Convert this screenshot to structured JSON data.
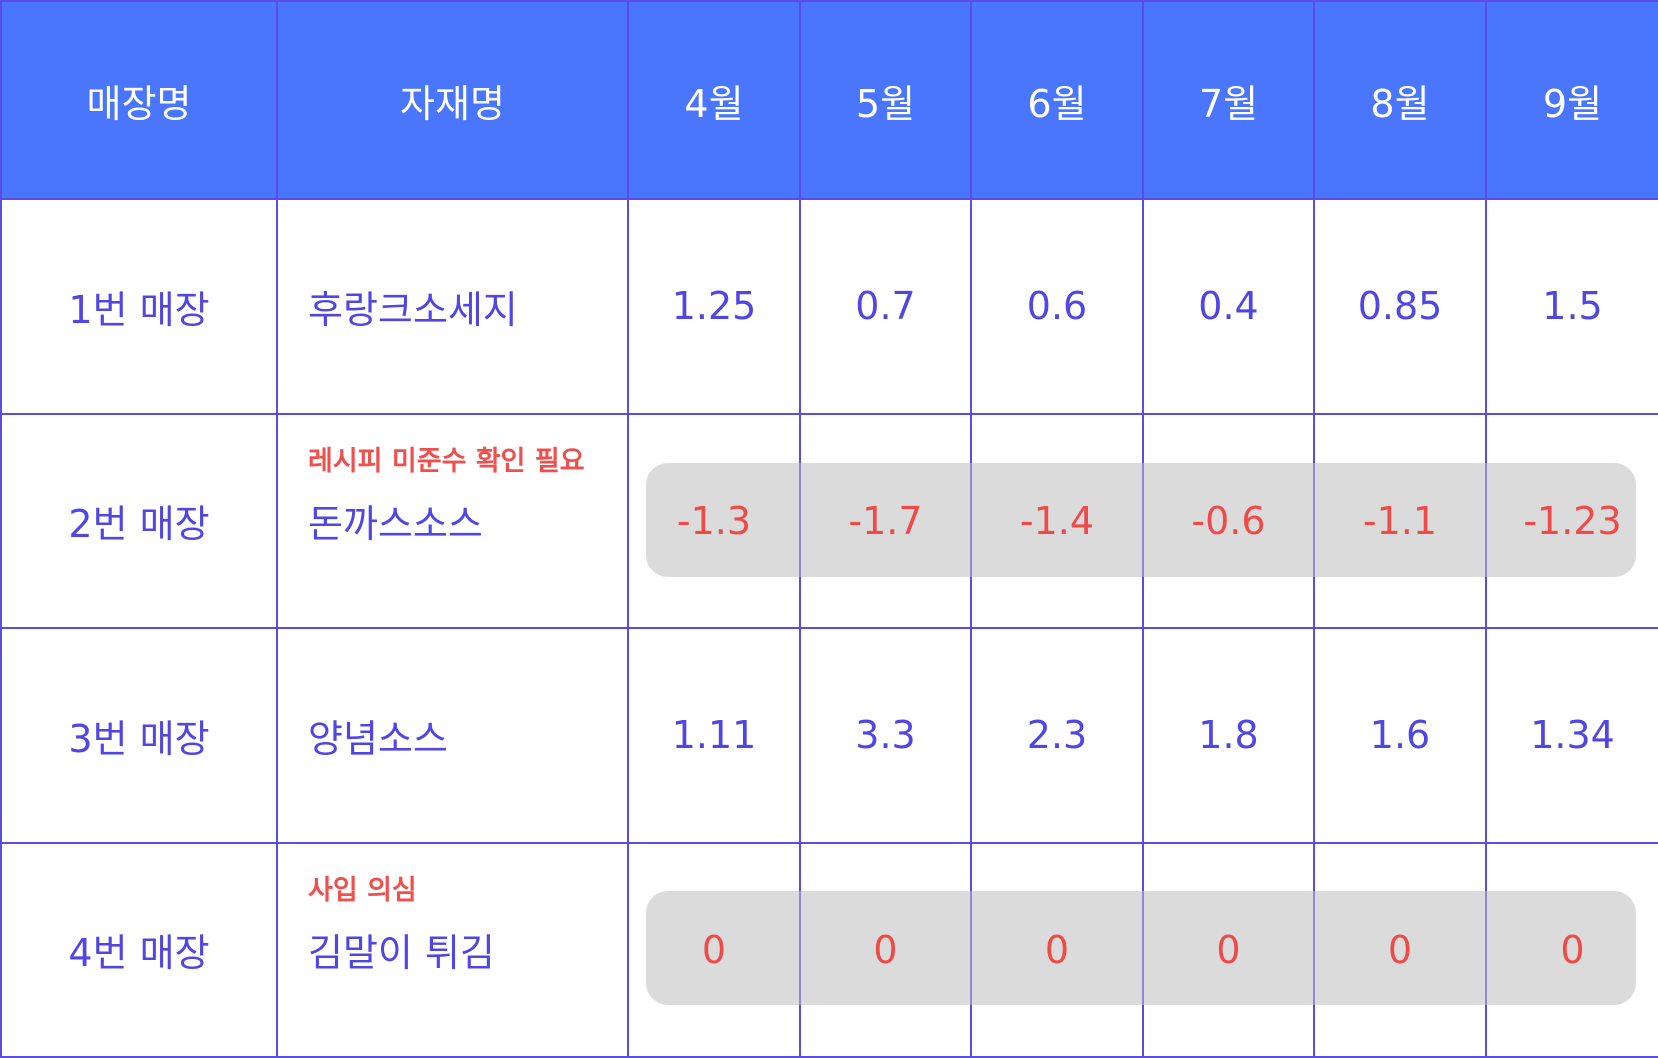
{
  "colors": {
    "header_bg": "#4a76fe",
    "header_text": "#ffffff",
    "border": "#5b4ce8",
    "body_text": "#5046e6",
    "alert_text": "#f04a48",
    "highlight_bg": "#d9d9d9"
  },
  "table": {
    "headers": {
      "store": "매장명",
      "material": "자재명",
      "months": [
        "4월",
        "5월",
        "6월",
        "7월",
        "8월",
        "9월"
      ]
    },
    "rows": [
      {
        "store": "1번 매장",
        "material": "후랑크소세지",
        "note": "",
        "values": [
          "1.25",
          "0.7",
          "0.6",
          "0.4",
          "0.85",
          "1.5"
        ]
      },
      {
        "store": "2번 매장",
        "material": "돈까스소스",
        "note": "레시피 미준수 확인 필요",
        "values": [
          "-1.3",
          "-1.7",
          "-1.4",
          "-0.6",
          "-1.1",
          "-1.23"
        ]
      },
      {
        "store": "3번 매장",
        "material": "양념소스",
        "note": "",
        "values": [
          "1.11",
          "3.3",
          "2.3",
          "1.8",
          "1.6",
          "1.34"
        ]
      },
      {
        "store": "4번 매장",
        "material": "김말이 튀김",
        "note": "사입 의심",
        "values": [
          "0",
          "0",
          "0",
          "0",
          "0",
          "0"
        ]
      }
    ]
  }
}
